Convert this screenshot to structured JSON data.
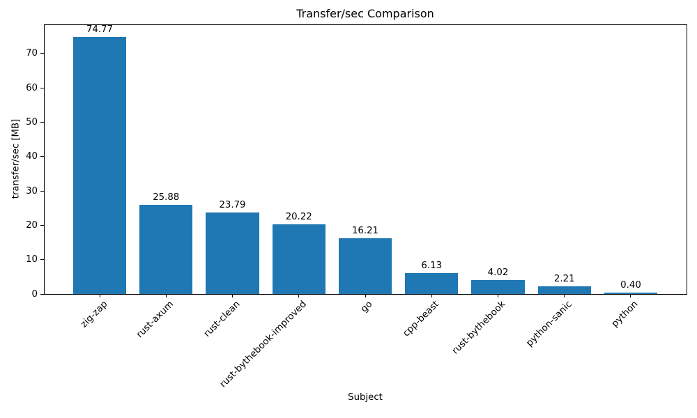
{
  "chart_data": {
    "type": "bar",
    "title": "Transfer/sec Comparison",
    "xlabel": "Subject",
    "ylabel": "transfer/sec [MB]",
    "categories": [
      "zig-zap",
      "rust-axum",
      "rust-clean",
      "rust-bythebook-improved",
      "go",
      "cpp-beast",
      "rust-bythebook",
      "python-sanic",
      "python"
    ],
    "values": [
      74.77,
      25.88,
      23.79,
      20.22,
      16.21,
      6.13,
      4.02,
      2.21,
      0.4
    ],
    "bar_labels": [
      "74.77",
      "25.88",
      "23.79",
      "20.22",
      "16.21",
      "6.13",
      "4.02",
      "2.21",
      "0.40"
    ],
    "yticks": [
      0,
      10,
      20,
      30,
      40,
      50,
      60,
      70
    ],
    "ylim": [
      0,
      78.5
    ],
    "bar_color": "#1f77b4",
    "axis_color": "#000000",
    "text_color": "#000000",
    "grid": false,
    "legend_position": "none",
    "x_tick_rotation_deg": 45
  }
}
